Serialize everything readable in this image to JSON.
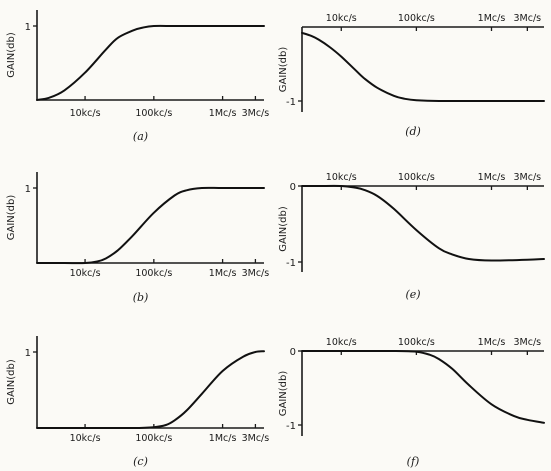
{
  "chart_data": [
    {
      "panel": "(a)",
      "type": "line",
      "ylabel": "GAIN(db)",
      "ylim": [
        0,
        1
      ],
      "y_ticks": [
        {
          "value": 1,
          "label": "1"
        }
      ],
      "x_scale": "log",
      "x_unit": "kc/s",
      "x_ticks": [
        {
          "value": 10,
          "label": "10kc/s"
        },
        {
          "value": 100,
          "label": "100kc/s"
        },
        {
          "value": 1000,
          "label": "1Mc/s"
        },
        {
          "value": 3000,
          "label": "3Mc/s"
        }
      ],
      "xlim": [
        2,
        4000
      ],
      "x_axis_position": "bottom",
      "series": [
        {
          "x": [
            2,
            3,
            5,
            10,
            20,
            30,
            50,
            70,
            100,
            200,
            500,
            1000,
            3000,
            4000
          ],
          "y": [
            0.0,
            0.03,
            0.13,
            0.37,
            0.68,
            0.84,
            0.94,
            0.98,
            1.0,
            1.0,
            1.0,
            1.0,
            1.0,
            1.0
          ]
        }
      ]
    },
    {
      "panel": "(b)",
      "type": "line",
      "ylabel": "GAIN(db)",
      "ylim": [
        0,
        1
      ],
      "y_ticks": [
        {
          "value": 1,
          "label": "1"
        }
      ],
      "x_scale": "log",
      "x_unit": "kc/s",
      "x_ticks": [
        {
          "value": 10,
          "label": "10kc/s"
        },
        {
          "value": 100,
          "label": "100kc/s"
        },
        {
          "value": 1000,
          "label": "1Mc/s"
        },
        {
          "value": 3000,
          "label": "3Mc/s"
        }
      ],
      "xlim": [
        2,
        4000
      ],
      "x_axis_position": "bottom",
      "series": [
        {
          "x": [
            2,
            5,
            10,
            15,
            20,
            30,
            50,
            100,
            200,
            300,
            500,
            1000,
            3000,
            4000
          ],
          "y": [
            0.0,
            0.0,
            0.0,
            0.02,
            0.06,
            0.17,
            0.37,
            0.67,
            0.9,
            0.97,
            1.0,
            1.0,
            1.0,
            1.0
          ]
        }
      ]
    },
    {
      "panel": "(c)",
      "type": "line",
      "ylabel": "GAIN(db)",
      "ylim": [
        0,
        1
      ],
      "y_ticks": [
        {
          "value": 1,
          "label": "1"
        }
      ],
      "x_scale": "log",
      "x_unit": "kc/s",
      "x_ticks": [
        {
          "value": 10,
          "label": "10kc/s"
        },
        {
          "value": 100,
          "label": "100kc/s"
        },
        {
          "value": 1000,
          "label": "1Mc/s"
        },
        {
          "value": 3000,
          "label": "3Mc/s"
        }
      ],
      "xlim": [
        2,
        4000
      ],
      "x_axis_position": "bottom",
      "series": [
        {
          "x": [
            2,
            10,
            50,
            100,
            150,
            200,
            300,
            500,
            1000,
            2000,
            3000,
            4000
          ],
          "y": [
            0.0,
            0.0,
            0.0,
            0.01,
            0.04,
            0.1,
            0.23,
            0.45,
            0.75,
            0.94,
            1.0,
            1.01
          ]
        }
      ]
    },
    {
      "panel": "(d)",
      "type": "line",
      "ylabel": "GAIN(db)",
      "ylim": [
        -1,
        0
      ],
      "y_ticks": [
        {
          "value": -1,
          "label": "-1"
        }
      ],
      "x_scale": "log",
      "x_unit": "kc/s",
      "x_ticks": [
        {
          "value": 10,
          "label": "10kc/s"
        },
        {
          "value": 100,
          "label": "100kc/s"
        },
        {
          "value": 1000,
          "label": "1Mc/s"
        },
        {
          "value": 3000,
          "label": "3Mc/s"
        }
      ],
      "xlim": [
        3,
        5000
      ],
      "x_axis_position": "top",
      "series": [
        {
          "x": [
            3,
            4,
            5,
            7,
            10,
            15,
            20,
            30,
            50,
            70,
            100,
            200,
            500,
            1000,
            3000,
            5000
          ],
          "y": [
            -0.08,
            -0.12,
            -0.17,
            -0.27,
            -0.4,
            -0.57,
            -0.69,
            -0.82,
            -0.93,
            -0.97,
            -0.99,
            -1.0,
            -1.0,
            -1.0,
            -1.0,
            -1.0
          ]
        }
      ]
    },
    {
      "panel": "(e)",
      "type": "line",
      "ylabel": "GAIN(db)",
      "ylim": [
        -1,
        0
      ],
      "y_ticks": [
        {
          "value": 0,
          "label": "0"
        },
        {
          "value": -1,
          "label": "-1"
        }
      ],
      "x_scale": "log",
      "x_unit": "kc/s",
      "x_ticks": [
        {
          "value": 10,
          "label": "10kc/s"
        },
        {
          "value": 100,
          "label": "100kc/s"
        },
        {
          "value": 1000,
          "label": "1Mc/s"
        },
        {
          "value": 3000,
          "label": "3Mc/s"
        }
      ],
      "xlim": [
        3,
        5000
      ],
      "x_axis_position": "top",
      "series": [
        {
          "x": [
            3,
            5,
            10,
            15,
            20,
            30,
            50,
            100,
            200,
            300,
            500,
            1000,
            3000,
            5000
          ],
          "y": [
            0.0,
            0.0,
            0.0,
            -0.02,
            -0.05,
            -0.13,
            -0.3,
            -0.58,
            -0.82,
            -0.9,
            -0.96,
            -0.98,
            -0.97,
            -0.96
          ]
        }
      ]
    },
    {
      "panel": "(f)",
      "type": "line",
      "ylabel": "GAIN(db)",
      "ylim": [
        -1,
        0
      ],
      "y_ticks": [
        {
          "value": 0,
          "label": "0"
        },
        {
          "value": -1,
          "label": "-1"
        }
      ],
      "x_scale": "log",
      "x_unit": "kc/s",
      "x_ticks": [
        {
          "value": 10,
          "label": "10kc/s"
        },
        {
          "value": 100,
          "label": "100kc/s"
        },
        {
          "value": 1000,
          "label": "1Mc/s"
        },
        {
          "value": 3000,
          "label": "3Mc/s"
        }
      ],
      "xlim": [
        3,
        5000
      ],
      "x_axis_position": "top",
      "series": [
        {
          "x": [
            3,
            10,
            50,
            100,
            150,
            200,
            300,
            500,
            1000,
            2000,
            3000,
            5000
          ],
          "y": [
            0.0,
            0.0,
            0.0,
            -0.01,
            -0.05,
            -0.11,
            -0.24,
            -0.46,
            -0.72,
            -0.88,
            -0.93,
            -0.97
          ]
        }
      ]
    }
  ]
}
